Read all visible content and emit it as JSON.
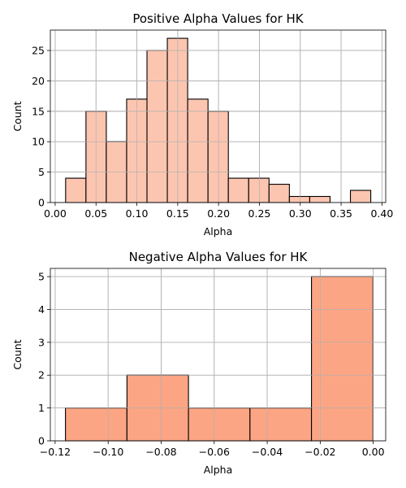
{
  "colors": {
    "positive_bar": "#fcc5b0",
    "negative_bar": "#fca584",
    "edge": "#000000",
    "grid": "#b0b0b0"
  },
  "chart_data": [
    {
      "type": "bar",
      "title": "Positive Alpha Values for HK",
      "xlabel": "Alpha",
      "ylabel": "Count",
      "xlim": [
        -0.0059,
        0.4046
      ],
      "ylim": [
        0,
        28.35
      ],
      "grid": true,
      "xticks": [
        0.0,
        0.05,
        0.1,
        0.15,
        0.2,
        0.25,
        0.3,
        0.35,
        0.4
      ],
      "xtick_labels": [
        "0.00",
        "0.05",
        "0.10",
        "0.15",
        "0.20",
        "0.25",
        "0.30",
        "0.35",
        "0.40"
      ],
      "yticks": [
        0,
        5,
        10,
        15,
        20,
        25
      ],
      "ytick_labels": [
        "0",
        "5",
        "10",
        "15",
        "20",
        "25"
      ],
      "bin_start": 0.0128,
      "bin_width": 0.0249,
      "values": [
        4,
        15,
        10,
        17,
        25,
        27,
        17,
        15,
        4,
        4,
        3,
        1,
        1,
        0,
        2
      ]
    },
    {
      "type": "bar",
      "title": "Negative Alpha Values for HK",
      "xlabel": "Alpha",
      "ylabel": "Count",
      "xlim": [
        -0.1218,
        0.0047
      ],
      "ylim": [
        0,
        5.25
      ],
      "grid": true,
      "xticks": [
        -0.12,
        -0.1,
        -0.08,
        -0.06,
        -0.04,
        -0.02,
        0.0
      ],
      "xtick_labels": [
        "−0.12",
        "−0.10",
        "−0.08",
        "−0.06",
        "−0.04",
        "−0.02",
        "0.00"
      ],
      "yticks": [
        0,
        1,
        2,
        3,
        4,
        5
      ],
      "ytick_labels": [
        "0",
        "1",
        "2",
        "3",
        "4",
        "5"
      ],
      "bin_start": -0.1161,
      "bin_width": 0.0232,
      "values": [
        1,
        2,
        1,
        1,
        5
      ]
    }
  ]
}
